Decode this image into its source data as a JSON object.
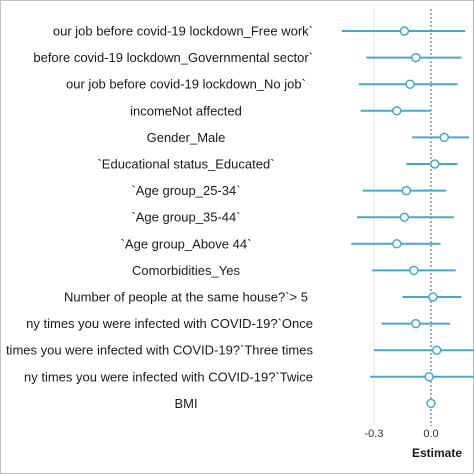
{
  "chart_data": {
    "type": "scatter",
    "subtype": "forest-plot",
    "title": "",
    "xlabel": "Estimate",
    "ylabel": "",
    "xlim": [
      -0.62,
      0.3
    ],
    "xticks": [
      -0.3,
      0.0
    ],
    "xtick_labels": [
      "-0.3",
      "0.0"
    ],
    "reference_line": 0.0,
    "grid": "vertical",
    "colors": {
      "marker": "#4aa8c7",
      "reference": "#555555",
      "grid": "#e6e6e6"
    },
    "rows": [
      {
        "label": "our job before covid-19 lockdown_Free work`",
        "estimate": -0.14,
        "lower": -0.47,
        "upper": 0.18
      },
      {
        "label": " before covid-19 lockdown_Governmental sector`",
        "estimate": -0.08,
        "lower": -0.34,
        "upper": 0.16
      },
      {
        "label": "our job before covid-19 lockdown_No job`",
        "estimate": -0.11,
        "lower": -0.38,
        "upper": 0.14
      },
      {
        "label": "incomeNot affected",
        "estimate": -0.18,
        "lower": -0.37,
        "upper": 0.0
      },
      {
        "label": "Gender_Male",
        "estimate": 0.07,
        "lower": -0.1,
        "upper": 0.2
      },
      {
        "label": "`Educational status_Educated`",
        "estimate": 0.02,
        "lower": -0.13,
        "upper": 0.14
      },
      {
        "label": "`Age group_25-34`",
        "estimate": -0.13,
        "lower": -0.36,
        "upper": 0.08
      },
      {
        "label": "`Age group_35-44`",
        "estimate": -0.14,
        "lower": -0.39,
        "upper": 0.12
      },
      {
        "label": "`Age group_Above 44`",
        "estimate": -0.18,
        "lower": -0.42,
        "upper": 0.05
      },
      {
        "label": "Comorbidities_Yes",
        "estimate": -0.09,
        "lower": -0.31,
        "upper": 0.13
      },
      {
        "label": "Number of people at the same house?`> 5",
        "estimate": 0.01,
        "lower": -0.15,
        "upper": 0.16
      },
      {
        "label": "ny times you were infected with COVID-19?`Once",
        "estimate": -0.08,
        "lower": -0.26,
        "upper": 0.1
      },
      {
        "label": "times you were infected with COVID-19?`Three times",
        "estimate": 0.03,
        "lower": -0.3,
        "upper": 0.3
      },
      {
        "label": "ny times you were infected with COVID-19?`Twice",
        "estimate": -0.01,
        "lower": -0.32,
        "upper": 0.24
      },
      {
        "label": "BMI",
        "estimate": 0.0,
        "lower": -0.01,
        "upper": 0.01
      }
    ]
  }
}
